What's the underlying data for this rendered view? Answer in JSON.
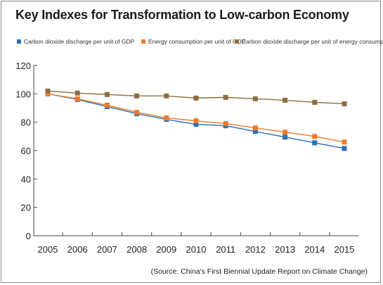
{
  "title": "Key Indexes for Transformation to Low-carbon Economy",
  "source": "(Source: China's First Biennial Update Report on Climate Change)",
  "chart_data": {
    "type": "line",
    "title": "Key Indexes for Transformation to Low-carbon Economy",
    "xlabel": "",
    "ylabel": "",
    "categories": [
      "2005",
      "2006",
      "2007",
      "2008",
      "2009",
      "2010",
      "2011",
      "2012",
      "2013",
      "2014",
      "2015"
    ],
    "ylim": [
      0,
      120
    ],
    "yticks": [
      0,
      20,
      40,
      60,
      80,
      100,
      120
    ],
    "grid": false,
    "legend_position": "top",
    "series": [
      {
        "name": "Carbon dioxide discharge per unit of GDP",
        "color": "#2b6fb5",
        "values": [
          100,
          96,
          91,
          86,
          82,
          78.5,
          77.5,
          73.5,
          69.5,
          65.5,
          61.5
        ]
      },
      {
        "name": "Energy consumption per unit of GDP",
        "color": "#f07a2a",
        "values": [
          100,
          96.5,
          92,
          87,
          83,
          81,
          79,
          76,
          73,
          70,
          66
        ]
      },
      {
        "name": "Carbon dioxide discharge per unit of energy consumption",
        "color": "#8c6e3f",
        "values": [
          102,
          100.5,
          99.5,
          98.5,
          98.5,
          97,
          97.5,
          96.5,
          95.5,
          94,
          93
        ]
      }
    ]
  }
}
